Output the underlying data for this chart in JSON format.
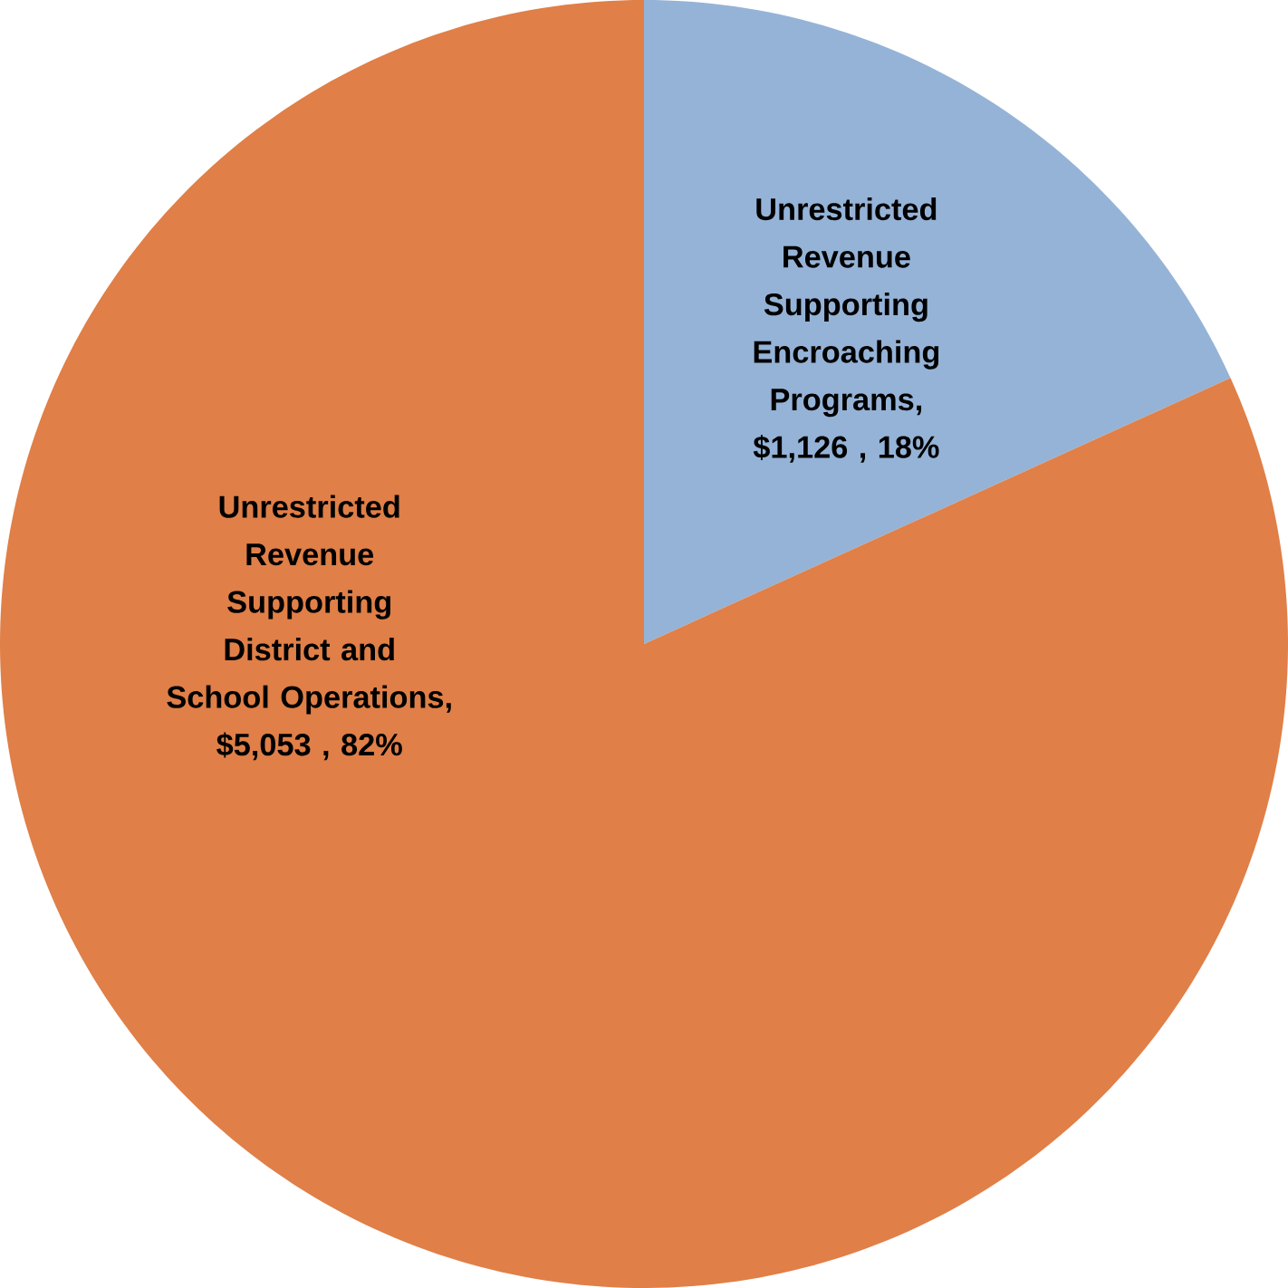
{
  "chart_data": {
    "type": "pie",
    "categories": [
      "Unrestricted Revenue Supporting Encroaching Programs",
      "Unrestricted Revenue Supporting District and School Operations"
    ],
    "values": [
      1126,
      5053
    ],
    "value_labels": [
      ", $1,126 , 18%",
      ", $5,053 , 82%"
    ],
    "colors": [
      "#95b3d7",
      "#e07f47"
    ]
  }
}
